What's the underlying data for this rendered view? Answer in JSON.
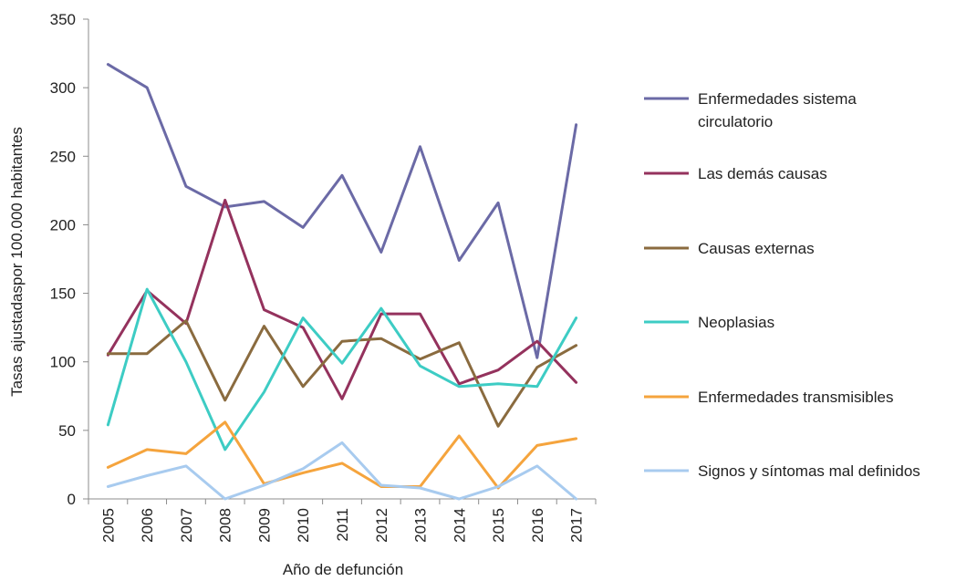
{
  "chart_data": {
    "type": "line",
    "title": "",
    "xlabel": "Año de defunción",
    "ylabel": "Tasas ajustadaspor 100.000 habitantes",
    "ylim": [
      0,
      350
    ],
    "yticks": [
      "0",
      "50",
      "100",
      "150",
      "200",
      "250",
      "300",
      "350"
    ],
    "grid": false,
    "legend_position": "right",
    "categories": [
      "2005",
      "2006",
      "2007",
      "2008",
      "2009",
      "2010",
      "2011",
      "2012",
      "2013",
      "2014",
      "2015",
      "2016",
      "2017"
    ],
    "series": [
      {
        "name": "Enfermedades sistema circulatorio",
        "legend_lines": [
          "Enfermedades sistema",
          "circulatorio"
        ],
        "color": "#6b6aa6",
        "values": [
          317,
          300,
          228,
          213,
          217,
          198,
          236,
          180,
          257,
          174,
          216,
          103,
          273
        ]
      },
      {
        "name": "Las demás causas",
        "legend_lines": [
          "Las demás causas"
        ],
        "color": "#94325d",
        "values": [
          105,
          152,
          128,
          218,
          138,
          125,
          73,
          135,
          135,
          84,
          94,
          115,
          85
        ]
      },
      {
        "name": "Causas externas",
        "legend_lines": [
          "Causas externas"
        ],
        "color": "#8a6b3f",
        "values": [
          106,
          106,
          130,
          72,
          126,
          82,
          115,
          117,
          102,
          114,
          53,
          96,
          112
        ]
      },
      {
        "name": "Neoplasias",
        "legend_lines": [
          "Neoplasias"
        ],
        "color": "#3dccc4",
        "values": [
          54,
          153,
          100,
          36,
          78,
          132,
          99,
          139,
          97,
          82,
          84,
          82,
          132
        ]
      },
      {
        "name": "Enfermedades transmisibles",
        "legend_lines": [
          "Enfermedades transmisibles"
        ],
        "color": "#f5a43d",
        "values": [
          23,
          36,
          33,
          56,
          11,
          19,
          26,
          9,
          9,
          46,
          8,
          39,
          44
        ]
      },
      {
        "name": "Signos y síntomas mal definidos",
        "legend_lines": [
          "Signos y síntomas mal definidos"
        ],
        "color": "#a8cbef",
        "values": [
          9,
          17,
          24,
          0,
          10,
          22,
          41,
          10,
          8,
          0,
          9,
          24,
          0
        ]
      }
    ]
  }
}
